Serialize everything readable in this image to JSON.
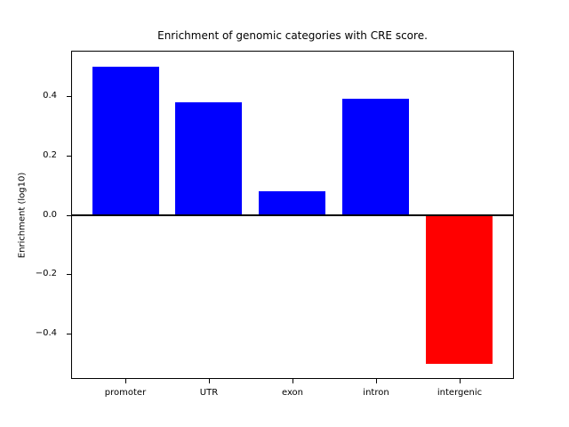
{
  "chart_data": {
    "type": "bar",
    "title": "Enrichment of genomic categories with CRE score.",
    "xlabel": "",
    "ylabel": "Enrichment (log10)",
    "categories": [
      "promoter",
      "UTR",
      "exon",
      "intron",
      "intergenic"
    ],
    "values": [
      0.5,
      0.38,
      0.08,
      0.39,
      -0.5
    ],
    "bar_colors": [
      "#0000ff",
      "#0000ff",
      "#0000ff",
      "#0000ff",
      "#ff0000"
    ],
    "positive_color": "#0000ff",
    "negative_color": "#ff0000",
    "bar_width": 0.8,
    "xlim": [
      -0.64,
      4.64
    ],
    "ylim": [
      -0.55,
      0.55
    ],
    "yticks": {
      "values": [
        0.4,
        0.2,
        0.0,
        -0.2,
        -0.4
      ],
      "labels": [
        "0.4",
        "0.2",
        "0.0",
        "−0.2",
        "−0.4"
      ]
    },
    "zero_line": true,
    "grid": false,
    "legend": "none",
    "background": "#ffffff",
    "axis_color": "#000000"
  }
}
